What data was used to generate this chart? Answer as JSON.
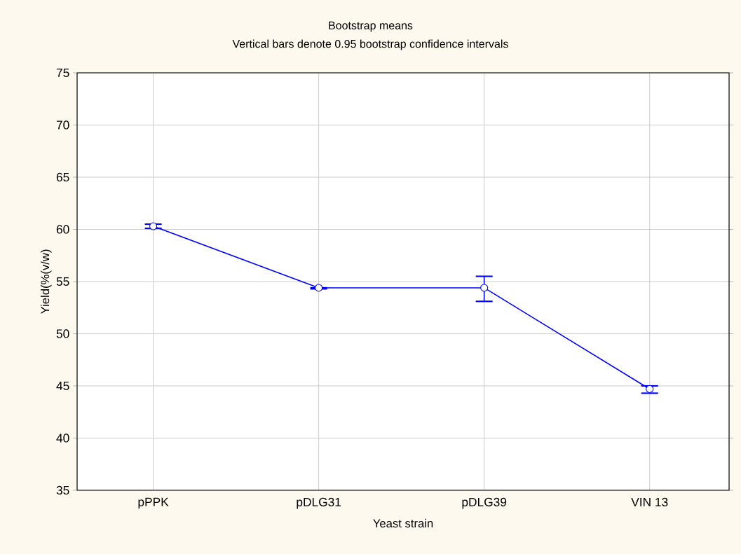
{
  "chart_data": {
    "type": "line",
    "title": "Bootstrap means",
    "subtitle": "Vertical bars denote 0.95 bootstrap confidence intervals",
    "xlabel": "Yeast strain",
    "ylabel": "Yield(%(v/w)",
    "categories": [
      "pPPK",
      "pDLG31",
      "pDLG39",
      "VIN 13"
    ],
    "series": [
      {
        "color": "#0000ff",
        "values": [
          60.3,
          54.4,
          54.4,
          44.7
        ],
        "errors": [
          [
            60.1,
            60.5
          ],
          [
            54.3,
            54.4
          ],
          [
            53.1,
            55.5
          ],
          [
            44.3,
            45.0
          ]
        ]
      }
    ],
    "ylim": [
      35,
      75
    ],
    "yticks": [
      35,
      40,
      45,
      50,
      55,
      60,
      65,
      70,
      75
    ],
    "grid": true,
    "marker": "circle",
    "line_style": "solid"
  }
}
